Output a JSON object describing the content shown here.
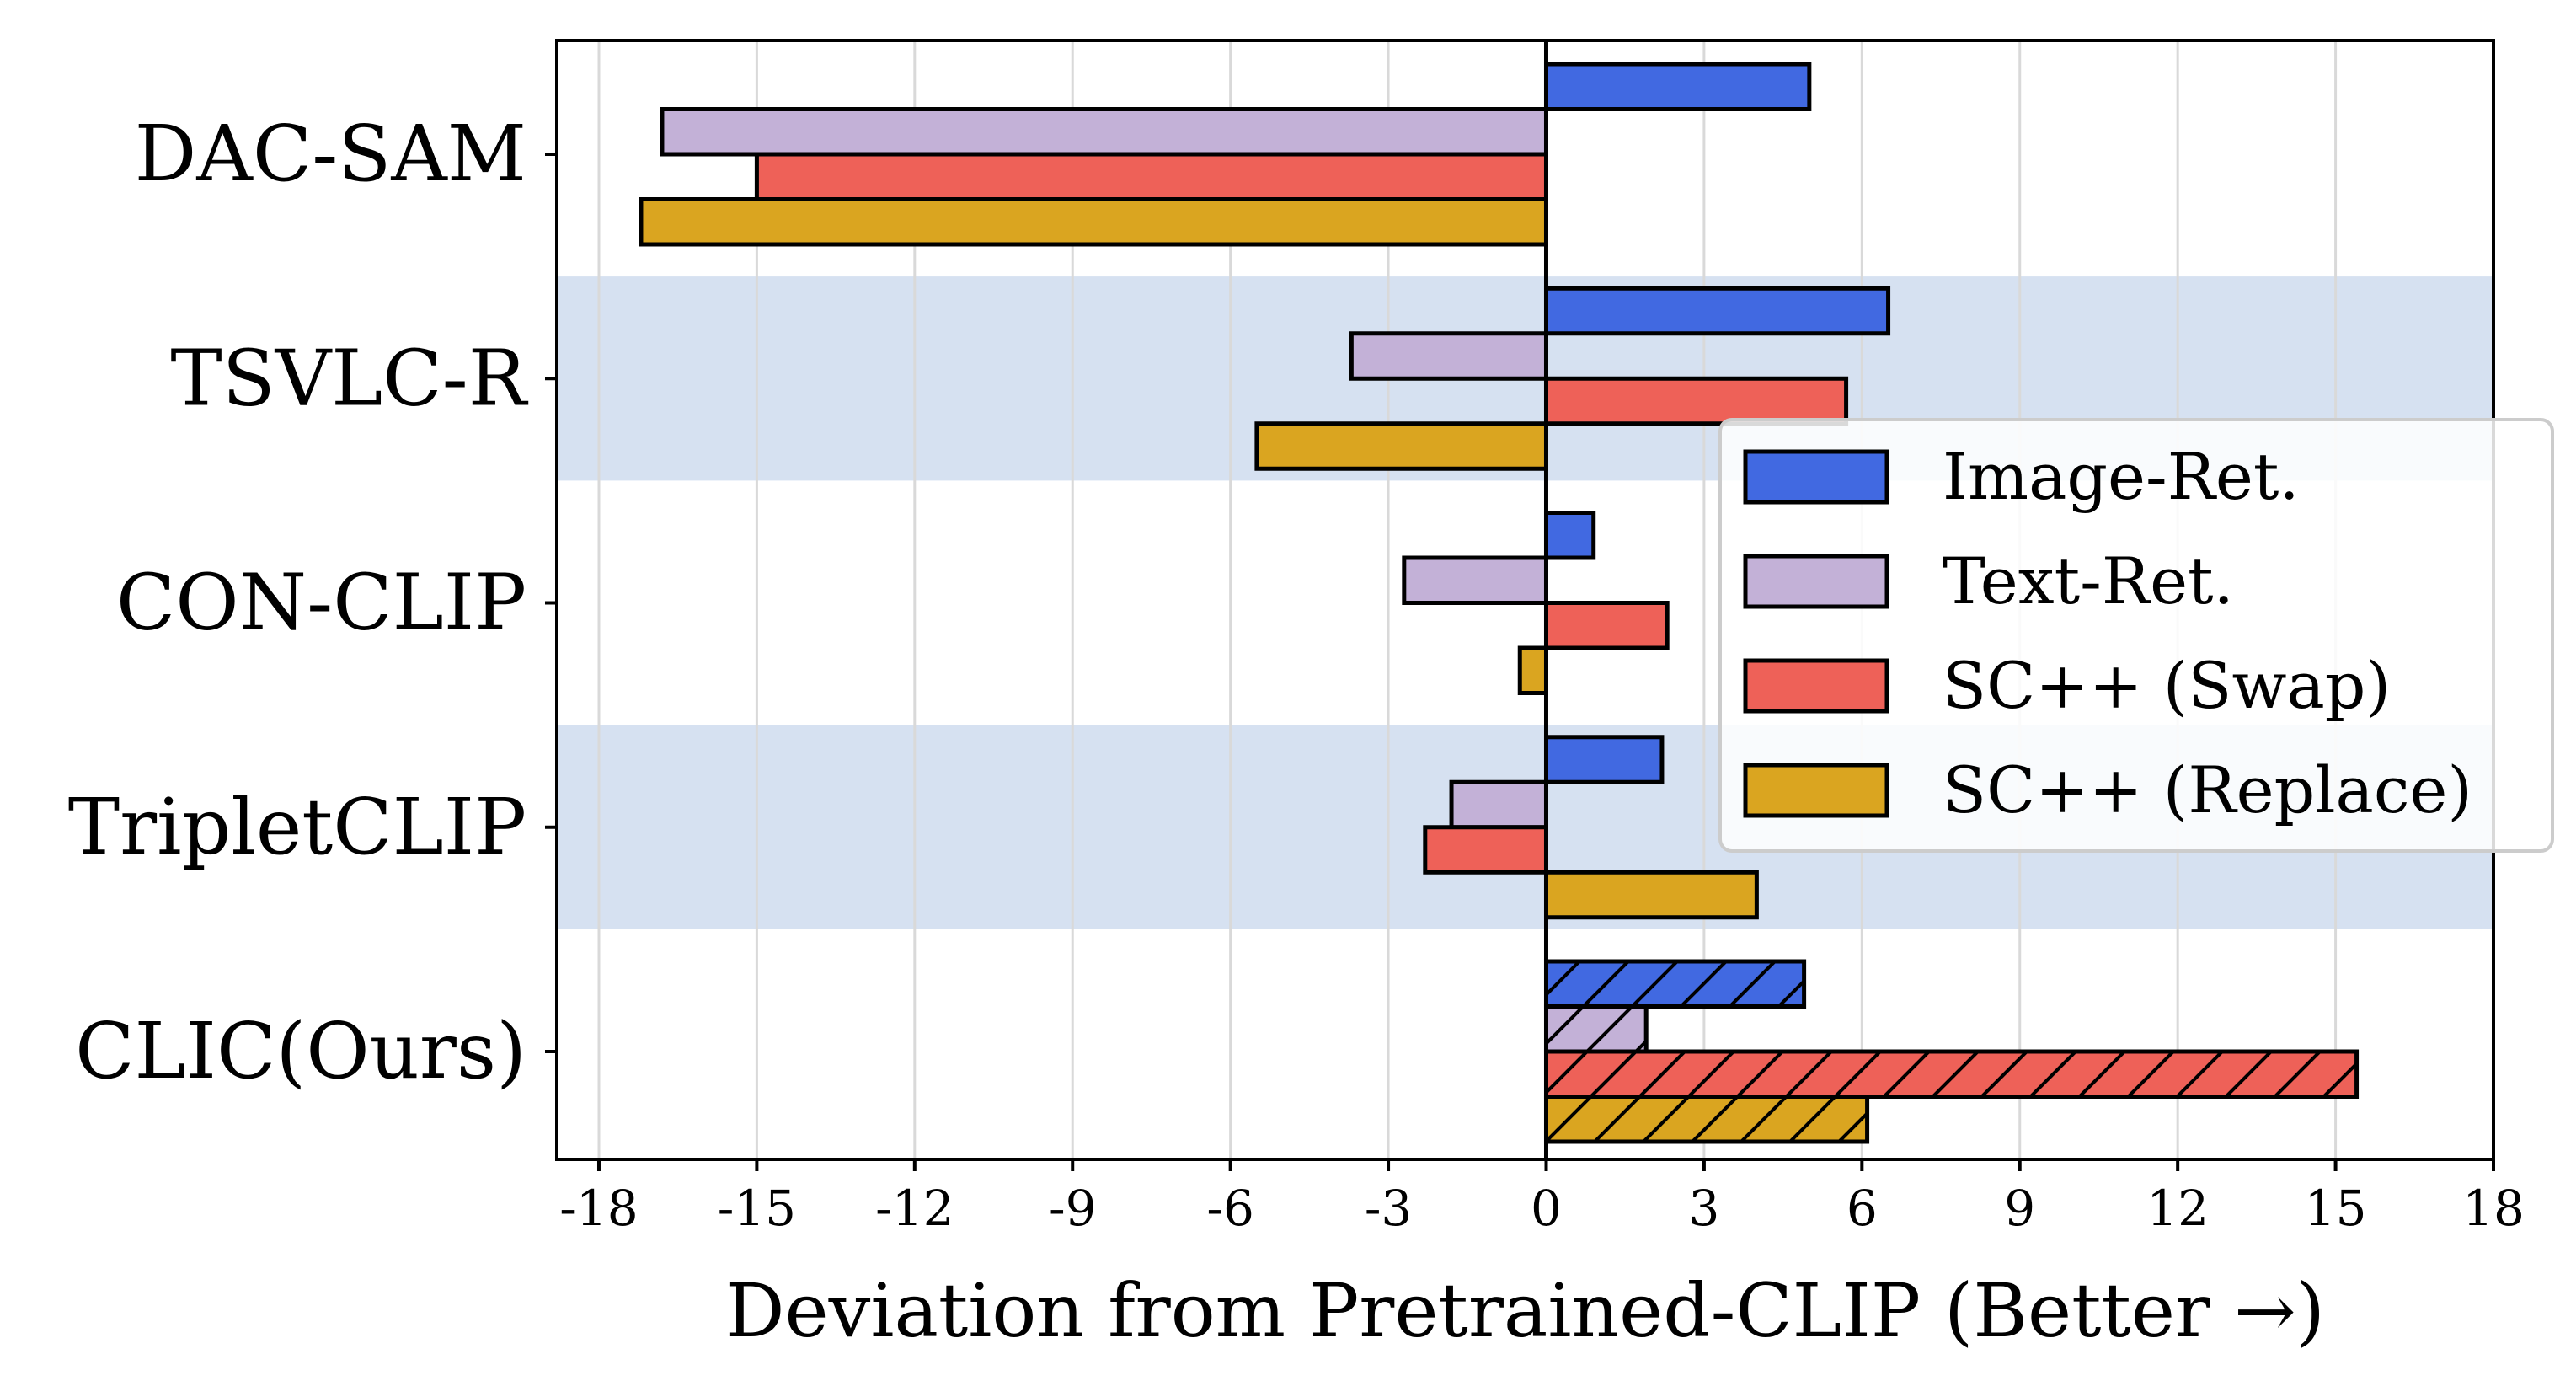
{
  "chart_data": {
    "type": "bar",
    "orientation": "horizontal",
    "title": "",
    "xlabel": "Deviation from Pretrained-CLIP (Better →)",
    "ylabel": "",
    "xlim": [
      -18.8,
      18
    ],
    "xticks": [
      -18,
      -15,
      -12,
      -9,
      -6,
      -3,
      0,
      3,
      6,
      9,
      12,
      15,
      18
    ],
    "grid": "vertical",
    "legend_position": "center-right",
    "categories": [
      "DAC-SAM",
      "TSVLC-R",
      "CON-CLIP",
      "TripletCLIP",
      "CLIC(Ours)"
    ],
    "highlighted_categories": [
      "TSVLC-R",
      "TripletCLIP"
    ],
    "hatched_categories": [
      "CLIC(Ours)"
    ],
    "series": [
      {
        "name": "Image-Ret.",
        "color": "#4169e1",
        "values": [
          5.0,
          6.5,
          0.9,
          2.2,
          4.9
        ]
      },
      {
        "name": "Text-Ret.",
        "color": "#c3b1d7",
        "values": [
          -16.8,
          -3.7,
          -2.7,
          -1.8,
          1.9
        ]
      },
      {
        "name": "SC++ (Swap)",
        "color": "#ee6158",
        "values": [
          -15.0,
          5.7,
          2.3,
          -2.3,
          15.4
        ]
      },
      {
        "name": "SC++ (Replace)",
        "color": "#daa520",
        "values": [
          -17.2,
          -5.5,
          -0.5,
          4.0,
          6.1
        ]
      }
    ]
  }
}
